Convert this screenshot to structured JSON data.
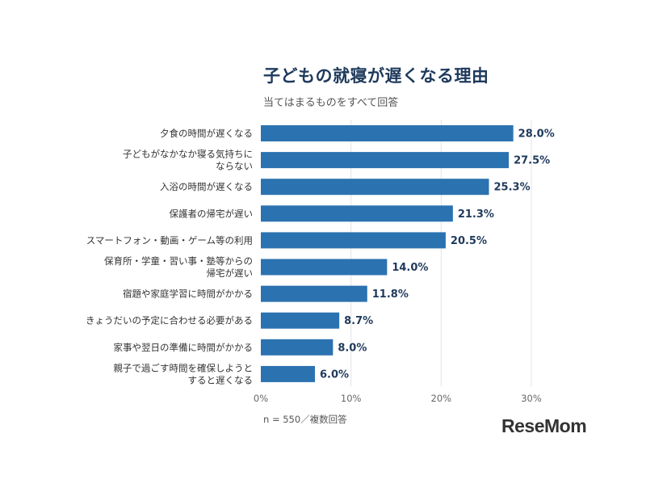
{
  "chart_data": {
    "type": "bar",
    "orientation": "horizontal",
    "title": "子どもの就寝が遅くなる理由",
    "subtitle": "当てはまるものをすべて回答",
    "categories": [
      [
        "夕食の時間が遅くなる"
      ],
      [
        "子どもがなかなか寝る気持ちに",
        "ならない"
      ],
      [
        "入浴の時間が遅くなる"
      ],
      [
        "保護者の帰宅が遅い"
      ],
      [
        "スマートフォン・動画・ゲーム等の利用"
      ],
      [
        "保育所・学童・習い事・塾等からの",
        "帰宅が遅い"
      ],
      [
        "宿題や家庭学習に時間がかかる"
      ],
      [
        "きょうだいの予定に合わせる必要がある"
      ],
      [
        "家事や翌日の準備に時間がかかる"
      ],
      [
        "親子で過ごす時間を確保しようと",
        "すると遅くなる"
      ]
    ],
    "values": [
      28.0,
      27.5,
      25.3,
      21.3,
      20.5,
      14.0,
      11.8,
      8.7,
      8.0,
      6.0
    ],
    "value_labels": [
      "28.0%",
      "27.5%",
      "25.3%",
      "21.3%",
      "20.5%",
      "14.0%",
      "11.8%",
      "8.7%",
      "8.0%",
      "6.0%"
    ],
    "xticks": [
      0,
      10,
      20,
      30
    ],
    "xtick_labels": [
      "0%",
      "10%",
      "20%",
      "30%"
    ],
    "xlim": [
      0,
      30
    ],
    "grid": true,
    "legend": "none",
    "bar_color": "#2b72b0",
    "note": "n = 550／複数回答"
  },
  "logo_text": "ReseMom"
}
